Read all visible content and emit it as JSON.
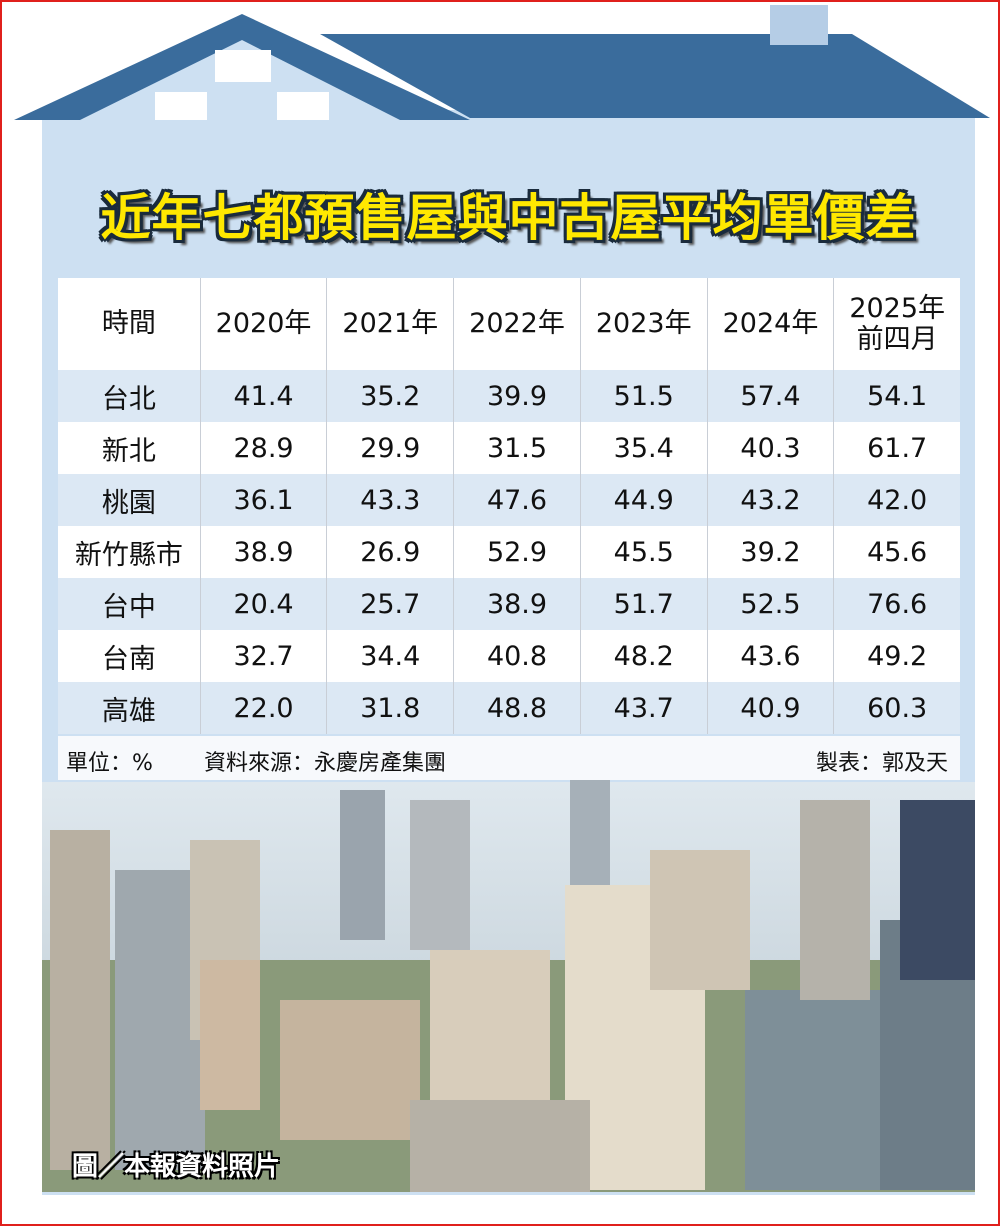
{
  "title": "近年七都預售屋與中古屋平均單價差",
  "table": {
    "header": [
      "時間",
      "2020年",
      "2021年",
      "2022年",
      "2023年",
      "2024年",
      [
        "2025年",
        "前四月"
      ]
    ],
    "rows": [
      [
        "台北",
        "41.4",
        "35.2",
        "39.9",
        "51.5",
        "57.4",
        "54.1"
      ],
      [
        "新北",
        "28.9",
        "29.9",
        "31.5",
        "35.4",
        "40.3",
        "61.7"
      ],
      [
        "桃園",
        "36.1",
        "43.3",
        "47.6",
        "44.9",
        "43.2",
        "42.0"
      ],
      [
        "新竹縣市",
        "38.9",
        "26.9",
        "52.9",
        "45.5",
        "39.2",
        "45.6"
      ],
      [
        "台中",
        "20.4",
        "25.7",
        "38.9",
        "51.7",
        "52.5",
        "76.6"
      ],
      [
        "台南",
        "32.7",
        "34.4",
        "40.8",
        "48.2",
        "43.6",
        "49.2"
      ],
      [
        "高雄",
        "22.0",
        "31.8",
        "48.8",
        "43.7",
        "40.9",
        "60.3"
      ]
    ]
  },
  "footer": {
    "unit": "單位：%",
    "source": "資料來源：永慶房產集團",
    "author": "製表：郭及天"
  },
  "photo_caption": "圖／本報資料照片"
}
